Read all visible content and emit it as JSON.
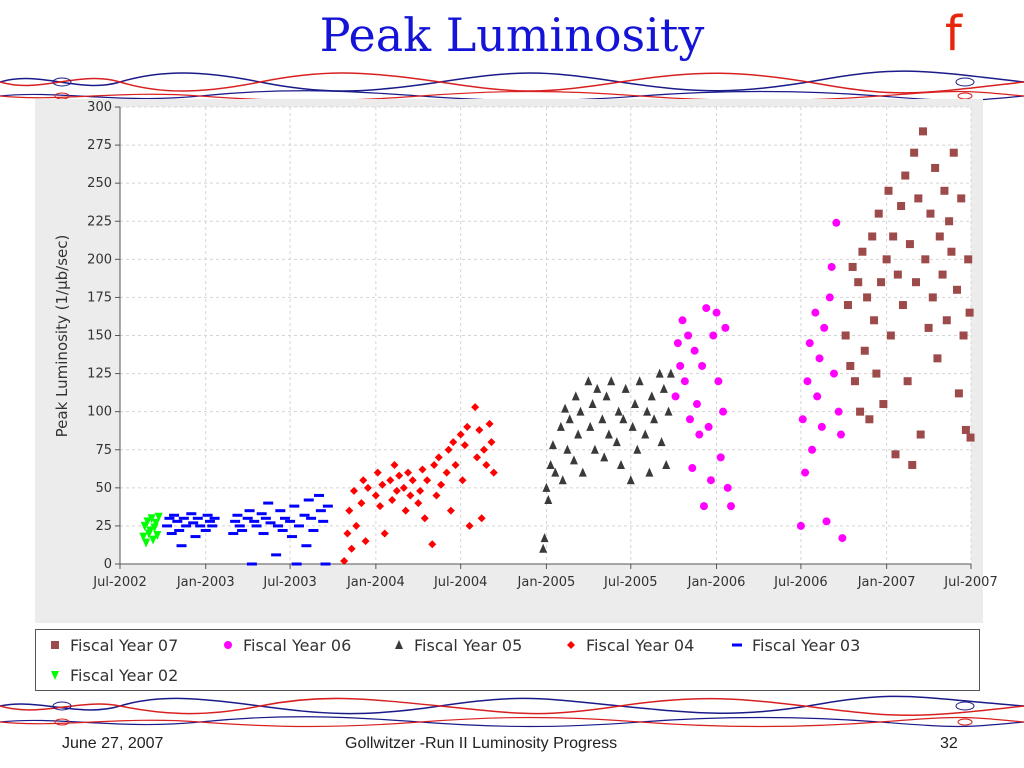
{
  "slide": {
    "title": "Peak Luminosity",
    "logo_letter": "f",
    "footer_date": "June 27, 2007",
    "footer_center": "Gollwitzer -Run II Luminosity Progress",
    "footer_page": "32"
  },
  "colors": {
    "title": "#1414d8",
    "logo": "#e8240c",
    "panel_bg": "#ececec",
    "fy07": "#9c4a4a",
    "fy06": "#ff00ff",
    "fy05": "#3a3a3a",
    "fy04": "#ff0000",
    "fy03": "#0000ff",
    "fy02": "#00ff00"
  },
  "chart_data": {
    "type": "scatter",
    "title": "",
    "xlabel": "",
    "ylabel": "Peak Luminosity (1/μb/sec)",
    "xlim": [
      "2002-07-01",
      "2007-07-01"
    ],
    "ylim": [
      0,
      300
    ],
    "x_ticks": [
      "Jul-2002",
      "Jan-2003",
      "Jul-2003",
      "Jan-2004",
      "Jul-2004",
      "Jan-2005",
      "Jul-2005",
      "Jan-2006",
      "Jul-2006",
      "Jan-2007",
      "Jul-2007"
    ],
    "y_ticks": [
      0,
      25,
      50,
      75,
      100,
      125,
      150,
      175,
      200,
      225,
      250,
      275,
      300
    ],
    "grid": true,
    "legend_position": "bottom",
    "series": [
      {
        "name": "Fiscal Year 07",
        "marker": "square",
        "color": "#9c4a4a",
        "points": [
          [
            "2006-10-05",
            150
          ],
          [
            "2006-10-10",
            170
          ],
          [
            "2006-10-15",
            130
          ],
          [
            "2006-10-20",
            195
          ],
          [
            "2006-10-25",
            120
          ],
          [
            "2006-11-01",
            185
          ],
          [
            "2006-11-05",
            100
          ],
          [
            "2006-11-10",
            205
          ],
          [
            "2006-11-15",
            140
          ],
          [
            "2006-11-20",
            175
          ],
          [
            "2006-11-25",
            95
          ],
          [
            "2006-12-01",
            215
          ],
          [
            "2006-12-05",
            160
          ],
          [
            "2006-12-10",
            125
          ],
          [
            "2006-12-15",
            230
          ],
          [
            "2006-12-20",
            185
          ],
          [
            "2006-12-25",
            105
          ],
          [
            "2007-01-01",
            200
          ],
          [
            "2007-01-05",
            245
          ],
          [
            "2007-01-10",
            150
          ],
          [
            "2007-01-15",
            215
          ],
          [
            "2007-01-20",
            72
          ],
          [
            "2007-01-25",
            190
          ],
          [
            "2007-02-01",
            235
          ],
          [
            "2007-02-05",
            170
          ],
          [
            "2007-02-10",
            255
          ],
          [
            "2007-02-15",
            120
          ],
          [
            "2007-02-20",
            210
          ],
          [
            "2007-02-25",
            65
          ],
          [
            "2007-03-01",
            270
          ],
          [
            "2007-03-05",
            185
          ],
          [
            "2007-03-10",
            240
          ],
          [
            "2007-03-15",
            85
          ],
          [
            "2007-03-20",
            284
          ],
          [
            "2007-03-25",
            200
          ],
          [
            "2007-04-01",
            155
          ],
          [
            "2007-04-05",
            230
          ],
          [
            "2007-04-10",
            175
          ],
          [
            "2007-04-15",
            260
          ],
          [
            "2007-04-20",
            135
          ],
          [
            "2007-04-25",
            215
          ],
          [
            "2007-05-01",
            190
          ],
          [
            "2007-05-05",
            245
          ],
          [
            "2007-05-10",
            160
          ],
          [
            "2007-05-15",
            225
          ],
          [
            "2007-05-20",
            205
          ],
          [
            "2007-05-25",
            270
          ],
          [
            "2007-06-01",
            180
          ],
          [
            "2007-06-05",
            112
          ],
          [
            "2007-06-10",
            240
          ],
          [
            "2007-06-15",
            150
          ],
          [
            "2007-06-20",
            88
          ],
          [
            "2007-06-25",
            200
          ],
          [
            "2007-06-28",
            165
          ],
          [
            "2007-06-30",
            83
          ]
        ]
      },
      {
        "name": "Fiscal Year 06",
        "marker": "circle",
        "color": "#ff00ff",
        "points": [
          [
            "2005-10-05",
            110
          ],
          [
            "2005-10-10",
            145
          ],
          [
            "2005-10-15",
            130
          ],
          [
            "2005-10-20",
            160
          ],
          [
            "2005-10-25",
            120
          ],
          [
            "2005-11-01",
            150
          ],
          [
            "2005-11-05",
            95
          ],
          [
            "2005-11-10",
            63
          ],
          [
            "2005-11-15",
            140
          ],
          [
            "2005-11-20",
            105
          ],
          [
            "2005-11-25",
            85
          ],
          [
            "2005-12-01",
            130
          ],
          [
            "2005-12-05",
            38
          ],
          [
            "2005-12-10",
            168
          ],
          [
            "2005-12-15",
            90
          ],
          [
            "2005-12-20",
            55
          ],
          [
            "2005-12-25",
            150
          ],
          [
            "2006-01-01",
            165
          ],
          [
            "2006-01-05",
            120
          ],
          [
            "2006-01-10",
            70
          ],
          [
            "2006-01-15",
            100
          ],
          [
            "2006-01-20",
            155
          ],
          [
            "2006-01-25",
            50
          ],
          [
            "2006-02-01",
            38
          ],
          [
            "2006-07-01",
            25
          ],
          [
            "2006-07-05",
            95
          ],
          [
            "2006-07-10",
            60
          ],
          [
            "2006-07-15",
            120
          ],
          [
            "2006-07-20",
            145
          ],
          [
            "2006-07-25",
            75
          ],
          [
            "2006-08-01",
            165
          ],
          [
            "2006-08-05",
            110
          ],
          [
            "2006-08-10",
            135
          ],
          [
            "2006-08-15",
            90
          ],
          [
            "2006-08-20",
            155
          ],
          [
            "2006-08-25",
            28
          ],
          [
            "2006-09-01",
            175
          ],
          [
            "2006-09-05",
            195
          ],
          [
            "2006-09-10",
            125
          ],
          [
            "2006-09-15",
            224
          ],
          [
            "2006-09-20",
            100
          ],
          [
            "2006-09-25",
            85
          ],
          [
            "2006-09-28",
            17
          ]
        ]
      },
      {
        "name": "Fiscal Year 05",
        "marker": "triangle-up",
        "color": "#3a3a3a",
        "points": [
          [
            "2004-12-25",
            10
          ],
          [
            "2004-12-28",
            17
          ],
          [
            "2005-01-01",
            50
          ],
          [
            "2005-01-05",
            42
          ],
          [
            "2005-01-10",
            65
          ],
          [
            "2005-01-15",
            78
          ],
          [
            "2005-01-20",
            60
          ],
          [
            "2005-02-01",
            90
          ],
          [
            "2005-02-05",
            55
          ],
          [
            "2005-02-10",
            102
          ],
          [
            "2005-02-15",
            75
          ],
          [
            "2005-02-20",
            95
          ],
          [
            "2005-03-01",
            68
          ],
          [
            "2005-03-05",
            110
          ],
          [
            "2005-03-10",
            85
          ],
          [
            "2005-03-15",
            100
          ],
          [
            "2005-03-20",
            60
          ],
          [
            "2005-04-01",
            120
          ],
          [
            "2005-04-05",
            90
          ],
          [
            "2005-04-10",
            105
          ],
          [
            "2005-04-15",
            75
          ],
          [
            "2005-04-20",
            115
          ],
          [
            "2005-05-01",
            95
          ],
          [
            "2005-05-05",
            70
          ],
          [
            "2005-05-10",
            110
          ],
          [
            "2005-05-15",
            85
          ],
          [
            "2005-05-20",
            120
          ],
          [
            "2005-06-01",
            80
          ],
          [
            "2005-06-05",
            100
          ],
          [
            "2005-06-10",
            65
          ],
          [
            "2005-06-15",
            95
          ],
          [
            "2005-06-20",
            115
          ],
          [
            "2005-07-01",
            55
          ],
          [
            "2005-07-05",
            90
          ],
          [
            "2005-07-10",
            105
          ],
          [
            "2005-07-15",
            75
          ],
          [
            "2005-07-20",
            120
          ],
          [
            "2005-08-01",
            85
          ],
          [
            "2005-08-05",
            100
          ],
          [
            "2005-08-10",
            60
          ],
          [
            "2005-08-15",
            110
          ],
          [
            "2005-08-20",
            95
          ],
          [
            "2005-09-01",
            125
          ],
          [
            "2005-09-05",
            80
          ],
          [
            "2005-09-10",
            115
          ],
          [
            "2005-09-15",
            65
          ],
          [
            "2005-09-20",
            100
          ],
          [
            "2005-09-25",
            125
          ]
        ]
      },
      {
        "name": "Fiscal Year 04",
        "marker": "diamond",
        "color": "#ff0000",
        "points": [
          [
            "2003-10-25",
            2
          ],
          [
            "2003-11-01",
            20
          ],
          [
            "2003-11-05",
            35
          ],
          [
            "2003-11-10",
            10
          ],
          [
            "2003-11-15",
            48
          ],
          [
            "2003-11-20",
            25
          ],
          [
            "2003-12-01",
            40
          ],
          [
            "2003-12-05",
            55
          ],
          [
            "2003-12-10",
            15
          ],
          [
            "2003-12-15",
            50
          ],
          [
            "2004-01-01",
            45
          ],
          [
            "2004-01-05",
            60
          ],
          [
            "2004-01-10",
            38
          ],
          [
            "2004-01-15",
            52
          ],
          [
            "2004-01-20",
            20
          ],
          [
            "2004-02-01",
            55
          ],
          [
            "2004-02-05",
            42
          ],
          [
            "2004-02-10",
            65
          ],
          [
            "2004-02-15",
            48
          ],
          [
            "2004-02-20",
            58
          ],
          [
            "2004-03-01",
            50
          ],
          [
            "2004-03-05",
            35
          ],
          [
            "2004-03-10",
            60
          ],
          [
            "2004-03-15",
            45
          ],
          [
            "2004-03-20",
            55
          ],
          [
            "2004-04-01",
            40
          ],
          [
            "2004-04-05",
            48
          ],
          [
            "2004-04-10",
            62
          ],
          [
            "2004-04-15",
            30
          ],
          [
            "2004-04-20",
            55
          ],
          [
            "2004-05-01",
            13
          ],
          [
            "2004-05-05",
            65
          ],
          [
            "2004-05-10",
            45
          ],
          [
            "2004-05-15",
            70
          ],
          [
            "2004-05-20",
            52
          ],
          [
            "2004-06-01",
            60
          ],
          [
            "2004-06-05",
            75
          ],
          [
            "2004-06-10",
            35
          ],
          [
            "2004-06-15",
            80
          ],
          [
            "2004-06-20",
            65
          ],
          [
            "2004-07-01",
            85
          ],
          [
            "2004-07-05",
            55
          ],
          [
            "2004-07-10",
            78
          ],
          [
            "2004-07-15",
            90
          ],
          [
            "2004-07-20",
            25
          ],
          [
            "2004-08-01",
            103
          ],
          [
            "2004-08-05",
            70
          ],
          [
            "2004-08-10",
            88
          ],
          [
            "2004-08-15",
            30
          ],
          [
            "2004-08-20",
            75
          ],
          [
            "2004-08-25",
            65
          ],
          [
            "2004-09-01",
            92
          ],
          [
            "2004-09-05",
            80
          ],
          [
            "2004-09-10",
            60
          ]
        ]
      },
      {
        "name": "Fiscal Year 03",
        "marker": "dash",
        "color": "#0000ff",
        "points": [
          [
            "2002-10-10",
            25
          ],
          [
            "2002-10-15",
            30
          ],
          [
            "2002-10-20",
            20
          ],
          [
            "2002-10-25",
            32
          ],
          [
            "2002-11-01",
            28
          ],
          [
            "2002-11-05",
            22
          ],
          [
            "2002-11-10",
            12
          ],
          [
            "2002-11-15",
            30
          ],
          [
            "2002-11-20",
            25
          ],
          [
            "2002-12-01",
            33
          ],
          [
            "2002-12-05",
            27
          ],
          [
            "2002-12-10",
            18
          ],
          [
            "2002-12-15",
            30
          ],
          [
            "2002-12-20",
            25
          ],
          [
            "2003-01-01",
            22
          ],
          [
            "2003-01-05",
            32
          ],
          [
            "2003-01-10",
            28
          ],
          [
            "2003-01-15",
            25
          ],
          [
            "2003-01-20",
            30
          ],
          [
            "2003-03-01",
            20
          ],
          [
            "2003-03-05",
            28
          ],
          [
            "2003-03-10",
            32
          ],
          [
            "2003-03-15",
            25
          ],
          [
            "2003-03-20",
            22
          ],
          [
            "2003-04-01",
            30
          ],
          [
            "2003-04-05",
            35
          ],
          [
            "2003-04-10",
            0
          ],
          [
            "2003-04-15",
            28
          ],
          [
            "2003-04-20",
            25
          ],
          [
            "2003-05-01",
            33
          ],
          [
            "2003-05-05",
            20
          ],
          [
            "2003-05-10",
            30
          ],
          [
            "2003-05-15",
            40
          ],
          [
            "2003-05-20",
            27
          ],
          [
            "2003-06-01",
            6
          ],
          [
            "2003-06-05",
            25
          ],
          [
            "2003-06-10",
            35
          ],
          [
            "2003-06-15",
            22
          ],
          [
            "2003-06-20",
            30
          ],
          [
            "2003-07-01",
            28
          ],
          [
            "2003-07-05",
            18
          ],
          [
            "2003-07-10",
            38
          ],
          [
            "2003-07-15",
            0
          ],
          [
            "2003-07-20",
            25
          ],
          [
            "2003-08-01",
            32
          ],
          [
            "2003-08-05",
            12
          ],
          [
            "2003-08-10",
            42
          ],
          [
            "2003-08-15",
            30
          ],
          [
            "2003-08-20",
            22
          ],
          [
            "2003-09-01",
            45
          ],
          [
            "2003-09-05",
            35
          ],
          [
            "2003-09-10",
            28
          ],
          [
            "2003-09-15",
            0
          ],
          [
            "2003-09-20",
            38
          ]
        ]
      },
      {
        "name": "Fiscal Year 02",
        "marker": "triangle-down",
        "color": "#00ff00",
        "points": [
          [
            "2002-08-20",
            18
          ],
          [
            "2002-08-23",
            25
          ],
          [
            "2002-08-26",
            14
          ],
          [
            "2002-08-29",
            28
          ],
          [
            "2002-09-01",
            20
          ],
          [
            "2002-09-04",
            22
          ],
          [
            "2002-09-07",
            30
          ],
          [
            "2002-09-10",
            16
          ],
          [
            "2002-09-13",
            24
          ],
          [
            "2002-09-16",
            27
          ],
          [
            "2002-09-19",
            19
          ],
          [
            "2002-09-22",
            31
          ]
        ]
      }
    ]
  }
}
